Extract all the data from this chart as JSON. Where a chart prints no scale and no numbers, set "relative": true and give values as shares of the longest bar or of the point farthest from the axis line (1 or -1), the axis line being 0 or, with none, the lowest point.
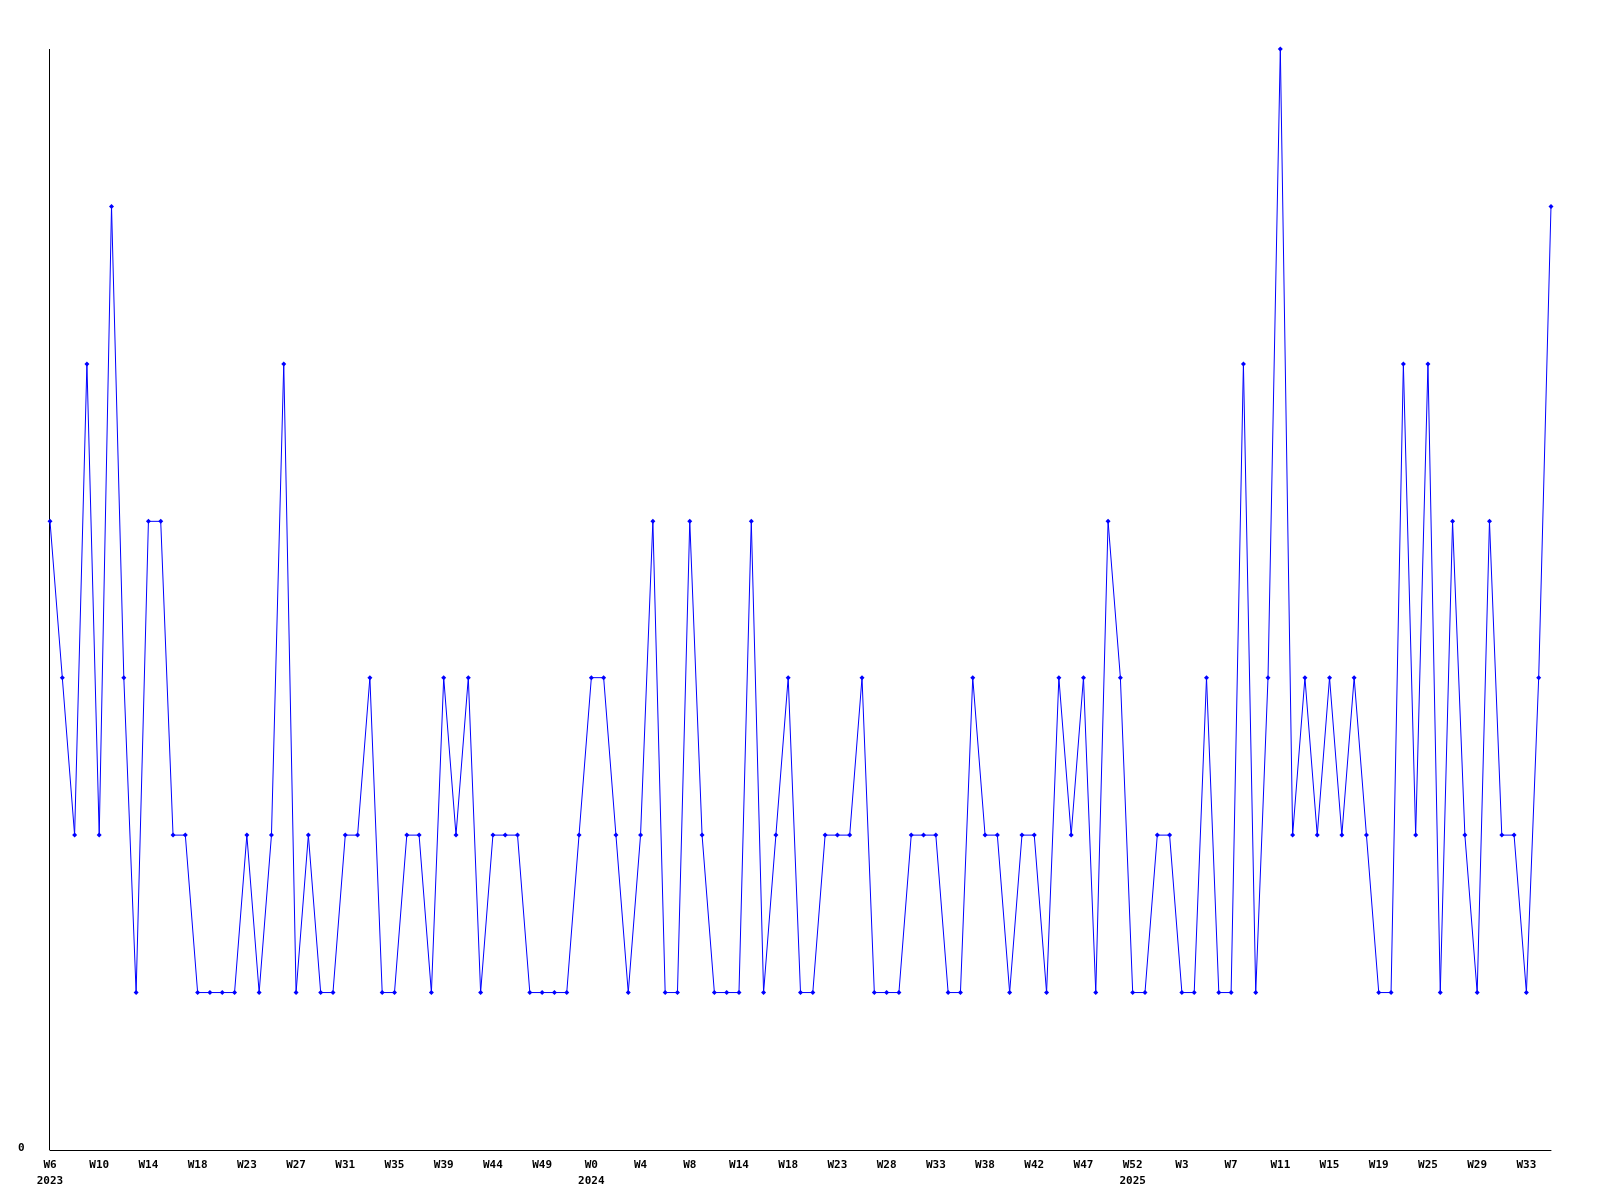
{
  "chart_data": {
    "type": "line",
    "relative": true,
    "color": "#0000ff",
    "marker": "diamond",
    "line_style": "solid",
    "grid": false,
    "annotations": [
      "0"
    ],
    "categories": [
      "W6\n2023",
      null,
      null,
      null,
      "W10",
      null,
      null,
      null,
      "W14",
      null,
      null,
      null,
      "W18",
      null,
      null,
      null,
      "W23",
      null,
      null,
      null,
      "W27",
      null,
      null,
      null,
      "W31",
      null,
      null,
      null,
      "W35",
      null,
      null,
      null,
      "W39",
      null,
      null,
      null,
      "W44",
      null,
      null,
      null,
      "W49",
      null,
      null,
      null,
      "W0\n2024",
      null,
      null,
      null,
      "W4",
      null,
      null,
      null,
      "W8",
      null,
      null,
      null,
      "W14",
      null,
      null,
      null,
      "W18",
      null,
      null,
      null,
      "W23",
      null,
      null,
      null,
      "W28",
      null,
      null,
      null,
      "W33",
      null,
      null,
      null,
      "W38",
      null,
      null,
      null,
      "W42",
      null,
      null,
      null,
      "W47",
      null,
      null,
      null,
      "W52\n2025",
      null,
      null,
      null,
      "W3",
      null,
      null,
      null,
      "W7",
      null,
      null,
      null,
      "W11",
      null,
      null,
      null,
      "W15",
      null,
      null,
      null,
      "W19",
      null,
      null,
      null,
      "W25",
      null,
      null,
      null,
      "W29",
      null,
      null,
      null,
      "W33",
      null,
      null
    ],
    "values": [
      0.571,
      0.429,
      0.286,
      0.714,
      0.286,
      0.857,
      0.429,
      0.143,
      0.571,
      0.571,
      0.286,
      0.286,
      0.143,
      0.143,
      0.143,
      0.143,
      0.286,
      0.143,
      0.286,
      0.714,
      0.143,
      0.286,
      0.143,
      0.143,
      0.286,
      0.286,
      0.429,
      0.143,
      0.143,
      0.286,
      0.286,
      0.143,
      0.429,
      0.286,
      0.429,
      0.143,
      0.286,
      0.286,
      0.286,
      0.143,
      0.143,
      0.143,
      0.143,
      0.286,
      0.429,
      0.429,
      0.286,
      0.143,
      0.286,
      0.571,
      0.143,
      0.143,
      0.571,
      0.286,
      0.143,
      0.143,
      0.143,
      0.571,
      0.143,
      0.286,
      0.429,
      0.143,
      0.143,
      0.286,
      0.286,
      0.286,
      0.429,
      0.143,
      0.143,
      0.143,
      0.286,
      0.286,
      0.286,
      0.143,
      0.143,
      0.429,
      0.286,
      0.286,
      0.143,
      0.286,
      0.286,
      0.143,
      0.429,
      0.286,
      0.429,
      0.143,
      0.571,
      0.429,
      0.143,
      0.143,
      0.286,
      0.286,
      0.143,
      0.143,
      0.429,
      0.143,
      0.143,
      0.714,
      0.143,
      0.429,
      1,
      0.286,
      0.429,
      0.286,
      0.429,
      0.286,
      0.429,
      0.286,
      0.143,
      0.143,
      0.714,
      0.286,
      0.714,
      0.143,
      0.571,
      0.286,
      0.143,
      0.571,
      0.286,
      0.286,
      0.143,
      0.429,
      0.857
    ]
  }
}
